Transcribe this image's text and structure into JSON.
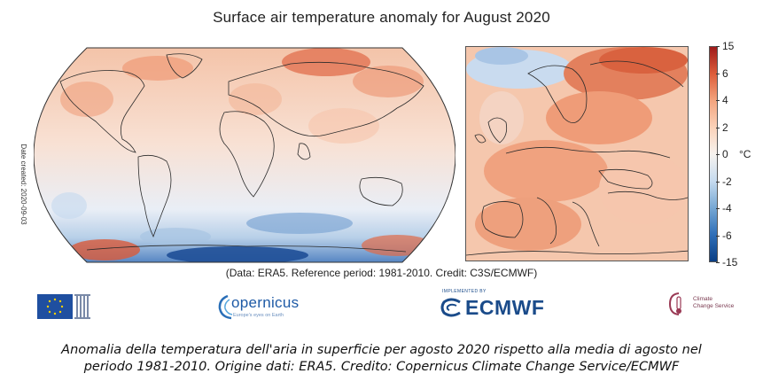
{
  "title": "Surface air temperature anomaly for August 2020",
  "date_created": "Date created: 2020-09-03",
  "colorbar": {
    "unit": "°C",
    "ticks": [
      "15",
      "6",
      "4",
      "2",
      "0",
      "-2",
      "-4",
      "-6",
      "-15"
    ],
    "colors": [
      "#0a3e84",
      "#2f6fb8",
      "#77a8d4",
      "#c6dbef",
      "#f7f3ef",
      "#fbd2b9",
      "#f3a47e",
      "#dd5d3a",
      "#9e1a1a"
    ]
  },
  "credit_line": "(Data: ERA5.  Reference period: 1981-2010.  Credit: C3S/ECMWF)",
  "logos": {
    "eu": "eu-flag-icon",
    "copernicus_name": "opernicus",
    "copernicus_sub": "Europe's eyes on Earth",
    "ecmwf_name": "ECMWF",
    "ecmwf_sub": "IMPLEMENTED BY",
    "c3s_line1": "Climate",
    "c3s_line2": "Change Service"
  },
  "caption": {
    "line1": "Anomalia della temperatura dell'aria in superficie per agosto 2020 rispetto alla media di agosto nel",
    "line2": "periodo 1981-2010. Origine dati: ERA5. Credito: Copernicus Climate Change Service/ECMWF"
  }
}
